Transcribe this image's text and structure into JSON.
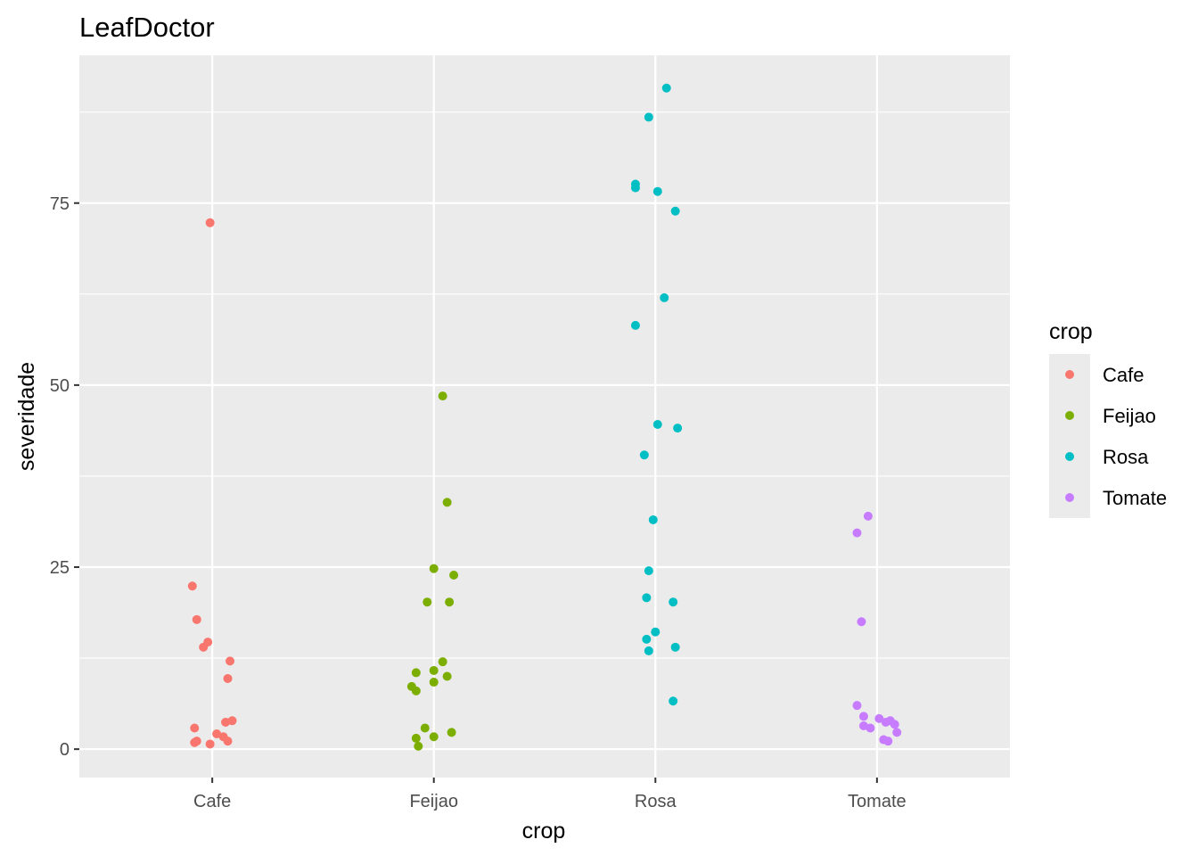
{
  "chart_data": {
    "type": "scatter",
    "title": "LeafDoctor",
    "xlabel": "crop",
    "ylabel": "severidade",
    "categories": [
      "Cafe",
      "Feijao",
      "Rosa",
      "Tomate"
    ],
    "y_ticks": [
      0,
      25,
      50,
      75
    ],
    "y_tick_labels": [
      "0",
      "25",
      "50",
      "75"
    ],
    "ylim": [
      -3.9,
      95.3
    ],
    "xlim": [
      0.4,
      4.6
    ],
    "grid": true,
    "legend": {
      "title": "crop",
      "position": "right",
      "entries": [
        "Cafe",
        "Feijao",
        "Rosa",
        "Tomate"
      ]
    },
    "colors": {
      "Cafe": "#F8766D",
      "Feijao": "#7CAE00",
      "Rosa": "#00BFC4",
      "Tomate": "#C77CFF"
    },
    "series": [
      {
        "name": "Cafe",
        "values": [
          72.3,
          22.4,
          17.8,
          14.7,
          14.0,
          12.1,
          9.7,
          2.9,
          3.7,
          3.9,
          2.1,
          1.7,
          1.1,
          1.1,
          0.9,
          0.7
        ],
        "jitter": [
          -0.01,
          -0.09,
          -0.07,
          -0.02,
          -0.04,
          0.08,
          0.07,
          -0.08,
          0.06,
          0.09,
          0.02,
          0.05,
          0.07,
          -0.07,
          -0.08,
          -0.01
        ]
      },
      {
        "name": "Feijao",
        "values": [
          48.5,
          33.9,
          24.8,
          23.9,
          20.2,
          20.2,
          12.0,
          10.8,
          10.5,
          10.0,
          9.2,
          8.6,
          8.0,
          2.9,
          2.3,
          1.7,
          1.5,
          0.4
        ],
        "jitter": [
          0.04,
          0.06,
          0.0,
          0.09,
          -0.03,
          0.07,
          0.04,
          0.0,
          -0.08,
          0.06,
          0.0,
          -0.1,
          -0.08,
          -0.04,
          0.08,
          0.0,
          -0.08,
          -0.07
        ]
      },
      {
        "name": "Rosa",
        "values": [
          90.8,
          86.8,
          77.6,
          77.1,
          76.6,
          73.9,
          62.0,
          58.2,
          44.6,
          44.1,
          40.4,
          31.5,
          24.5,
          20.8,
          20.2,
          16.1,
          15.1,
          14.0,
          13.5,
          6.6
        ],
        "jitter": [
          0.05,
          -0.03,
          -0.09,
          -0.09,
          0.01,
          0.09,
          0.04,
          -0.09,
          0.01,
          0.1,
          -0.05,
          -0.01,
          -0.03,
          -0.04,
          0.08,
          0.0,
          -0.04,
          0.09,
          -0.03,
          0.08
        ]
      },
      {
        "name": "Tomate",
        "values": [
          32.0,
          29.7,
          17.5,
          6.0,
          4.5,
          4.2,
          3.9,
          3.7,
          3.4,
          3.2,
          2.9,
          2.3,
          1.3,
          1.1
        ],
        "jitter": [
          -0.04,
          -0.09,
          -0.07,
          -0.09,
          -0.06,
          0.01,
          0.06,
          0.04,
          0.08,
          -0.06,
          -0.03,
          0.09,
          0.03,
          0.05
        ]
      }
    ]
  }
}
